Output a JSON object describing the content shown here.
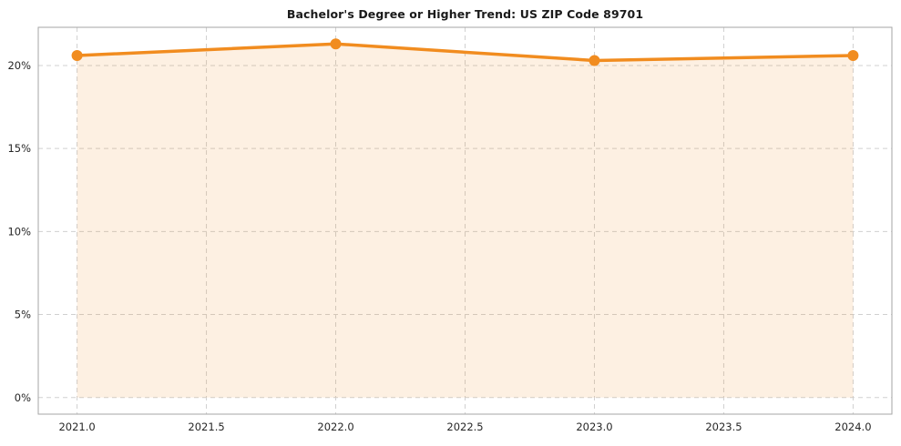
{
  "chart_data": {
    "type": "area",
    "title": "Bachelor's Degree or Higher Trend: US ZIP Code 89701",
    "x": [
      2021,
      2022,
      2023,
      2024
    ],
    "values": [
      20.6,
      21.3,
      20.3,
      20.6
    ],
    "xlabel": "",
    "ylabel": "",
    "xlim": [
      2020.85,
      2024.15
    ],
    "ylim": [
      -1,
      22.3
    ],
    "xticks": [
      2021.0,
      2021.5,
      2022.0,
      2022.5,
      2023.0,
      2023.5,
      2024.0
    ],
    "xtick_labels": [
      "2021.0",
      "2021.5",
      "2022.0",
      "2022.5",
      "2023.0",
      "2023.5",
      "2024.0"
    ],
    "yticks": [
      0,
      5,
      10,
      15,
      20
    ],
    "ytick_labels": [
      "0%",
      "5%",
      "10%",
      "15%",
      "20%"
    ],
    "grid": true,
    "grid_style": "dashed",
    "legend": "none",
    "line_width": 3.5,
    "marker_radius": 6,
    "colors": {
      "line": "#f18c1f",
      "marker": "#f18c1f",
      "fill": "rgba(241,140,31,0.13)",
      "grid": "#d0d0d0",
      "spine": "#a6a6a6",
      "tick_text": "#262626",
      "title_text": "#1a1a1a",
      "background": "#ffffff"
    }
  }
}
